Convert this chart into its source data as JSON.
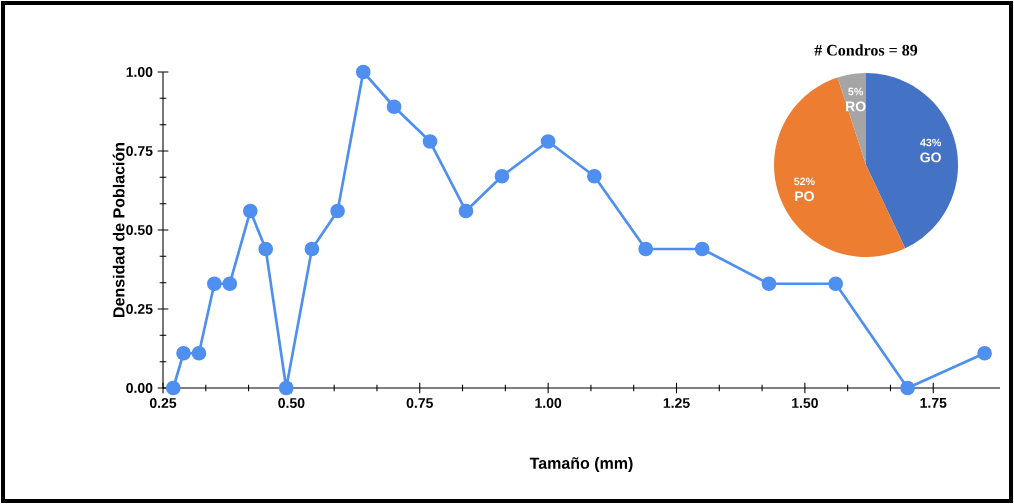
{
  "chart_data": [
    {
      "type": "line",
      "xlabel": "Tamaño (mm)",
      "ylabel": "Densidad de Población",
      "x": [
        0.27,
        0.29,
        0.32,
        0.35,
        0.38,
        0.42,
        0.45,
        0.49,
        0.54,
        0.59,
        0.64,
        0.7,
        0.77,
        0.84,
        0.91,
        1.0,
        1.09,
        1.19,
        1.3,
        1.43,
        1.56,
        1.7,
        1.85
      ],
      "values": [
        0,
        0.11,
        0.11,
        0.33,
        0.33,
        0.56,
        0.44,
        0,
        0.44,
        0.56,
        1.0,
        0.89,
        0.78,
        0.56,
        0.67,
        0.78,
        0.67,
        0.44,
        0.44,
        0.33,
        0.33,
        0,
        0.11
      ],
      "color": "#4f8ff0",
      "marker": "circle",
      "line_style": "solid",
      "xlim": [
        0.25,
        1.88
      ],
      "ylim": [
        0,
        1.0
      ],
      "xticks": [
        {
          "value": 0.25,
          "label": "0.25"
        },
        {
          "value": 0.5,
          "label": "0.50"
        },
        {
          "value": 0.75,
          "label": "0.75"
        },
        {
          "value": 1.0,
          "label": "1.00"
        },
        {
          "value": 1.25,
          "label": "1.25"
        },
        {
          "value": 1.5,
          "label": "1.50"
        },
        {
          "value": 1.75,
          "label": "1.75"
        }
      ],
      "yticks": [
        {
          "value": 0,
          "label": "0.00"
        },
        {
          "value": 0.25,
          "label": "0.25"
        },
        {
          "value": 0.5,
          "label": "0.50"
        },
        {
          "value": 0.75,
          "label": "0.75"
        },
        {
          "value": 1.0,
          "label": "1.00"
        }
      ]
    },
    {
      "type": "pie",
      "title": "# Condros = 89",
      "categories": [
        "GO",
        "PO",
        "RO"
      ],
      "values": [
        43,
        52,
        5
      ],
      "colors": [
        "#4472c4",
        "#ed7d31",
        "#a5a5a5"
      ],
      "value_labels": [
        "43%",
        "52%",
        "5%"
      ]
    }
  ]
}
